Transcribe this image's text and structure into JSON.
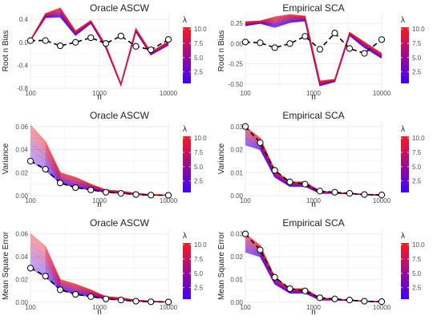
{
  "chart_data": [
    {
      "type": "line",
      "title": "Oracle ASCW",
      "xlabel": "n",
      "ylabel": "Root n Bias",
      "x_scale": "log",
      "xlim": [
        100,
        10000
      ],
      "ylim": [
        -0.8,
        0.5
      ],
      "x_ticks": [
        100,
        1000,
        10000
      ],
      "x_tick_labels": [
        "100",
        "1000",
        "10000"
      ],
      "y_ticks": [
        -0.8,
        -0.4,
        0.0,
        0.4
      ],
      "y_tick_labels": [
        "-0.8",
        "-0.4",
        "0.0",
        "0.4"
      ],
      "x": [
        100,
        165,
        270,
        450,
        750,
        1240,
        2050,
        3380,
        5580,
        10000
      ],
      "band": {
        "name": "λ",
        "low": [
          0.03,
          0.43,
          0.44,
          0.12,
          0.33,
          -0.1,
          -0.75,
          0.18,
          -0.22,
          -0.05
        ],
        "high": [
          0.04,
          0.5,
          0.6,
          0.2,
          0.38,
          -0.05,
          -0.72,
          0.24,
          -0.17,
          0.02
        ]
      },
      "dashed": {
        "y": [
          0.03,
          0.03,
          -0.06,
          0.0,
          0.08,
          -0.02,
          0.11,
          -0.07,
          -0.13,
          0.05
        ]
      },
      "legend": {
        "title": "λ",
        "ticks": [
          2.5,
          5.0,
          7.5,
          10.0
        ],
        "tick_labels": [
          "2.5",
          "5.0",
          "7.5",
          "10.0"
        ],
        "range": [
          0.5,
          10.3
        ]
      }
    },
    {
      "type": "line",
      "title": "Empirical SCA",
      "xlabel": "n",
      "ylabel": "Root n Bias",
      "x_scale": "log",
      "xlim": [
        100,
        10000
      ],
      "ylim": [
        -0.55,
        0.37
      ],
      "x_ticks": [
        100,
        1000,
        10000
      ],
      "x_tick_labels": [
        "100",
        "1000",
        "10000"
      ],
      "y_ticks": [
        -0.5,
        -0.25,
        0.0,
        0.25
      ],
      "y_tick_labels": [
        "-0.50",
        "-0.25",
        "0.00",
        "0.25"
      ],
      "x": [
        100,
        165,
        270,
        450,
        750,
        1240,
        2050,
        3380,
        5580,
        10000
      ],
      "band": {
        "name": "λ",
        "low": [
          0.22,
          0.25,
          0.2,
          0.26,
          0.28,
          -0.52,
          -0.47,
          0.1,
          -0.05,
          -0.18
        ],
        "high": [
          0.27,
          0.28,
          0.33,
          0.36,
          0.34,
          -0.46,
          -0.44,
          0.14,
          0.02,
          -0.12
        ]
      },
      "dashed": {
        "y": [
          0.02,
          0.01,
          -0.05,
          0.0,
          0.09,
          -0.07,
          0.13,
          -0.06,
          -0.12,
          0.05
        ]
      },
      "legend": {
        "title": "λ",
        "ticks": [
          2.5,
          5.0,
          7.5,
          10.0
        ],
        "tick_labels": [
          "2.5",
          "5.0",
          "7.5",
          "10.0"
        ],
        "range": [
          0.5,
          10.3
        ]
      }
    },
    {
      "type": "line",
      "title": "Oracle ASCW",
      "xlabel": "n",
      "ylabel": "Variance",
      "x_scale": "log",
      "xlim": [
        100,
        10000
      ],
      "ylim": [
        0,
        0.064
      ],
      "x_ticks": [
        100,
        1000,
        10000
      ],
      "x_tick_labels": [
        "100",
        "1000",
        "10000"
      ],
      "y_ticks": [
        0.0,
        0.02,
        0.04,
        0.06
      ],
      "y_tick_labels": [
        "0.00",
        "0.02",
        "0.04",
        "0.06"
      ],
      "x": [
        100,
        165,
        270,
        450,
        750,
        1240,
        2050,
        3380,
        5580,
        10000
      ],
      "band": {
        "name": "λ",
        "low": [
          0.03,
          0.022,
          0.011,
          0.007,
          0.005,
          0.003,
          0.002,
          0.001,
          0.0005,
          0.0003
        ],
        "high": [
          0.061,
          0.047,
          0.02,
          0.016,
          0.01,
          0.005,
          0.004,
          0.002,
          0.001,
          0.0005
        ]
      },
      "dashed": {
        "y": [
          0.03,
          0.023,
          0.011,
          0.007,
          0.005,
          0.003,
          0.002,
          0.001,
          0.0005,
          0.0003
        ]
      },
      "legend": {
        "title": "λ",
        "ticks": [
          2.5,
          5.0,
          7.5,
          10.0
        ],
        "tick_labels": [
          "2.5",
          "5.0",
          "7.5",
          "10.0"
        ],
        "range": [
          0.5,
          10.3
        ]
      }
    },
    {
      "type": "line",
      "title": "Empirical SCA",
      "xlabel": "n",
      "ylabel": "Variance",
      "x_scale": "log",
      "xlim": [
        100,
        10000
      ],
      "ylim": [
        0,
        0.032
      ],
      "x_ticks": [
        100,
        1000,
        10000
      ],
      "x_tick_labels": [
        "100",
        "1000",
        "10000"
      ],
      "y_ticks": [
        0.0,
        0.01,
        0.02,
        0.03
      ],
      "y_tick_labels": [
        "0.00",
        "0.01",
        "0.02",
        "0.03"
      ],
      "x": [
        100,
        165,
        270,
        450,
        750,
        1240,
        2050,
        3380,
        5580,
        10000
      ],
      "band": {
        "name": "λ",
        "low": [
          0.022,
          0.02,
          0.008,
          0.004,
          0.004,
          0.001,
          0.001,
          0.0008,
          0.0004,
          0.0002
        ],
        "high": [
          0.03,
          0.025,
          0.011,
          0.006,
          0.006,
          0.002,
          0.0015,
          0.001,
          0.0006,
          0.0003
        ]
      },
      "dashed": {
        "y": [
          0.03,
          0.023,
          0.011,
          0.006,
          0.005,
          0.002,
          0.0015,
          0.001,
          0.0005,
          0.0003
        ]
      },
      "legend": {
        "title": "λ",
        "ticks": [
          2.5,
          5.0,
          7.5,
          10.0
        ],
        "tick_labels": [
          "2.5",
          "5.0",
          "7.5",
          "10.0"
        ],
        "range": [
          0.5,
          10.3
        ]
      }
    },
    {
      "type": "line",
      "title": "Oracle ASCW",
      "xlabel": "n",
      "ylabel": "Mean Square Error",
      "x_scale": "log",
      "xlim": [
        100,
        10000
      ],
      "ylim": [
        0,
        0.064
      ],
      "x_ticks": [
        100,
        1000,
        10000
      ],
      "x_tick_labels": [
        "100",
        "1000",
        "10000"
      ],
      "y_ticks": [
        0.0,
        0.02,
        0.04,
        0.06
      ],
      "y_tick_labels": [
        "0.00",
        "0.02",
        "0.04",
        "0.06"
      ],
      "x": [
        100,
        165,
        270,
        450,
        750,
        1240,
        2050,
        3380,
        5580,
        10000
      ],
      "band": {
        "name": "λ",
        "low": [
          0.03,
          0.022,
          0.011,
          0.007,
          0.005,
          0.003,
          0.002,
          0.001,
          0.0005,
          0.0003
        ],
        "high": [
          0.06,
          0.049,
          0.02,
          0.016,
          0.011,
          0.005,
          0.004,
          0.002,
          0.001,
          0.0005
        ]
      },
      "dashed": {
        "y": [
          0.03,
          0.023,
          0.011,
          0.007,
          0.005,
          0.003,
          0.002,
          0.001,
          0.0005,
          0.0003
        ]
      },
      "legend": {
        "title": "λ",
        "ticks": [
          2.5,
          5.0,
          7.5,
          10.0
        ],
        "tick_labels": [
          "2.5",
          "5.0",
          "7.5",
          "10.0"
        ],
        "range": [
          0.5,
          10.3
        ]
      }
    },
    {
      "type": "line",
      "title": "Empirical SCA",
      "xlabel": "n",
      "ylabel": "Mean Square Error",
      "x_scale": "log",
      "xlim": [
        100,
        10000
      ],
      "ylim": [
        0,
        0.032
      ],
      "x_ticks": [
        100,
        1000,
        10000
      ],
      "x_tick_labels": [
        "100",
        "1000",
        "10000"
      ],
      "y_ticks": [
        0.0,
        0.01,
        0.02,
        0.03
      ],
      "y_tick_labels": [
        "0.00",
        "0.01",
        "0.02",
        "0.03"
      ],
      "x": [
        100,
        165,
        270,
        450,
        750,
        1240,
        2050,
        3380,
        5580,
        10000
      ],
      "band": {
        "name": "λ",
        "low": [
          0.022,
          0.02,
          0.008,
          0.004,
          0.004,
          0.001,
          0.001,
          0.0008,
          0.0004,
          0.0002
        ],
        "high": [
          0.03,
          0.025,
          0.011,
          0.006,
          0.006,
          0.002,
          0.0015,
          0.001,
          0.0006,
          0.0003
        ]
      },
      "dashed": {
        "y": [
          0.03,
          0.023,
          0.011,
          0.006,
          0.005,
          0.002,
          0.0015,
          0.001,
          0.0005,
          0.0003
        ]
      },
      "legend": {
        "title": "λ",
        "ticks": [
          2.5,
          5.0,
          7.5,
          10.0
        ],
        "tick_labels": [
          "2.5",
          "5.0",
          "7.5",
          "10.0"
        ],
        "range": [
          0.5,
          10.3
        ]
      }
    }
  ],
  "colors": {
    "low": "#3b00ff",
    "high": "#ff1a1a",
    "grid": "#ebebeb",
    "dashed": "#000000",
    "marker_fill": "#ffffff"
  }
}
